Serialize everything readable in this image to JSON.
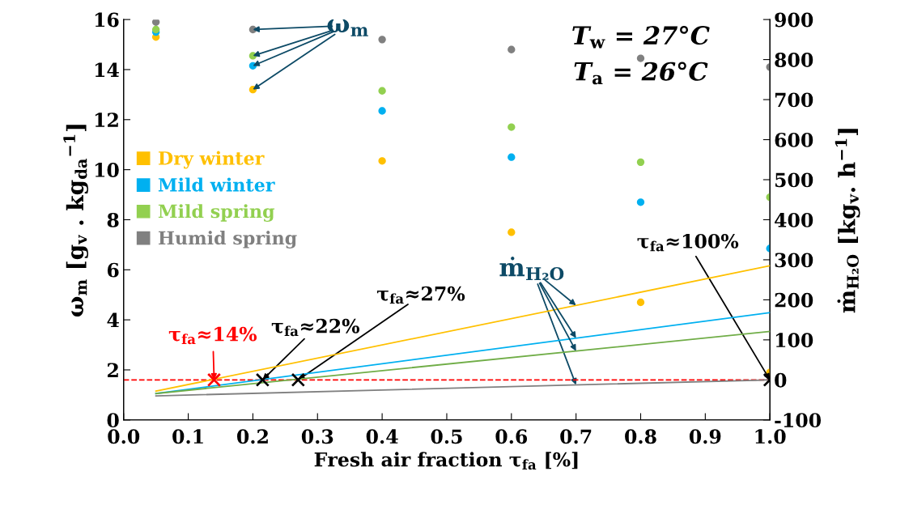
{
  "chart_data": {
    "type": "scatter",
    "xlabel": "Fresh air fraction τ$_{fa}$ [%]",
    "ylabel": "ω$_{m}$ [g$_{v}$ . kg$_{da}$$^{−1}$]",
    "y2label": "ṁ$_{H₂O}$ [kg$_{v}$. h$^{−1}$]",
    "x": [
      0.05,
      0.2,
      0.4,
      0.6,
      0.8,
      1.0
    ],
    "series": [
      {
        "name": "Dry winter",
        "marker": "circle",
        "color": "#ffc000",
        "values": [
          15.3,
          13.2,
          10.35,
          7.5,
          4.7,
          1.9
        ]
      },
      {
        "name": "Mild winter",
        "marker": "circle",
        "color": "#00b0f0",
        "values": [
          15.5,
          14.15,
          12.35,
          10.5,
          8.7,
          6.85
        ]
      },
      {
        "name": "Mild spring",
        "marker": "circle",
        "color": "#92d050",
        "values": [
          15.6,
          14.55,
          13.15,
          11.7,
          10.3,
          8.9
        ]
      },
      {
        "name": "Humid spring",
        "marker": "circle",
        "color": "#808080",
        "values": [
          15.9,
          15.6,
          15.2,
          14.8,
          14.45,
          14.1
        ]
      },
      {
        "type": "line",
        "axis": "y2",
        "color": "#ffc000",
        "x": [
          0.05,
          1.0
        ],
        "values": [
          -28,
          285
        ]
      },
      {
        "type": "line",
        "axis": "y2",
        "color": "#00b0f0",
        "x": [
          0.05,
          1.0
        ],
        "values": [
          -34,
          168
        ]
      },
      {
        "type": "line",
        "axis": "y2",
        "color": "#70ad47",
        "x": [
          0.05,
          1.0
        ],
        "values": [
          -34,
          121
        ]
      },
      {
        "type": "line",
        "axis": "y2",
        "color": "#808080",
        "x": [
          0.05,
          1.0
        ],
        "values": [
          -40,
          0
        ]
      },
      {
        "type": "scatter",
        "axis": "y2",
        "marker": "cross",
        "colors": [
          "#ff0000",
          "#000000",
          "#000000",
          "#000000"
        ],
        "x": [
          0.14,
          0.215,
          0.27,
          1.0
        ],
        "values": [
          0,
          0,
          0,
          0
        ]
      }
    ],
    "annotations": [
      {
        "text": "ω$_{m}$",
        "x": 0.2,
        "y": 15.6
      },
      {
        "text": "ṁ$_{H₂O}$",
        "x": 0.7,
        "y": 1.4
      },
      "T$_{w}$ = 27°C",
      "T$_{a}$ = 26°C",
      {
        "text": "τ$_{fa}$≈14%",
        "x": 0.14,
        "y": 1.6
      },
      {
        "text": "τ$_{fa}$≈22%",
        "x": 0.215,
        "y": 1.6
      },
      {
        "text": "τ$_{fa}$≈27%",
        "x": 0.27,
        "y": 1.6
      },
      {
        "text": "τ$_{fa}$≈100%",
        "x": 1.0,
        "y": 1.6
      }
    ],
    "ref_lines": [
      {
        "axis": "y2",
        "value": 0,
        "color": "#ff0000",
        "line_style": "dashed"
      }
    ],
    "xlim": [
      0,
      1
    ],
    "xticks": [
      {
        "value": 0,
        "label": "0.0"
      },
      0.1,
      0.2,
      0.3,
      0.4,
      0.5,
      0.6,
      0.7,
      0.8,
      0.9,
      {
        "value": 1,
        "label": "1.0"
      }
    ],
    "ylim": [
      0,
      16
    ],
    "yticks": [
      0,
      2,
      4,
      6,
      8,
      10,
      12,
      14,
      16
    ],
    "y2lim": [
      -100,
      900
    ],
    "y2ticks": [
      -100,
      0,
      100,
      200,
      300,
      400,
      500,
      600,
      700,
      800,
      900
    ],
    "grid": false,
    "legend": "left"
  }
}
